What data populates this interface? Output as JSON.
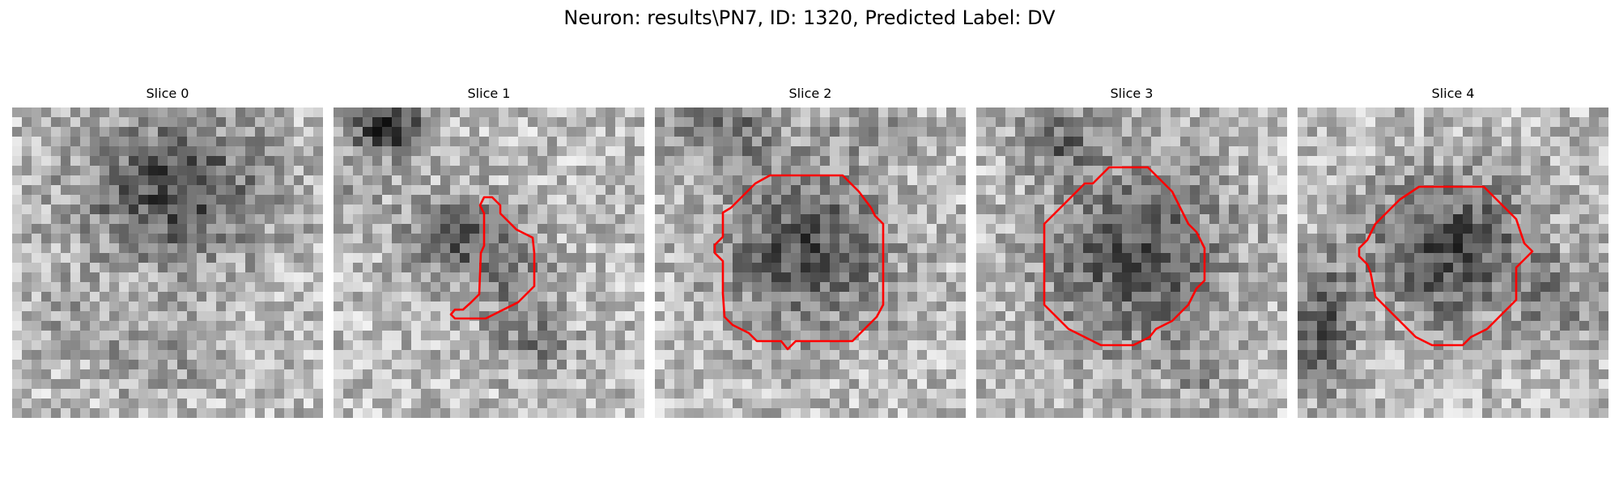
{
  "figure": {
    "title": "Neuron: results\\PN7, ID: 1320, Predicted Label: DV"
  },
  "colors": {
    "contour": "#ff0000"
  },
  "panels": [
    {
      "title": "Slice 0",
      "contour": false,
      "seed": 11
    },
    {
      "title": "Slice 1",
      "contour": true,
      "seed": 23
    },
    {
      "title": "Slice 2",
      "contour": true,
      "seed": 37
    },
    {
      "title": "Slice 3",
      "contour": true,
      "seed": 53
    },
    {
      "title": "Slice 4",
      "contour": true,
      "seed": 71
    }
  ]
}
